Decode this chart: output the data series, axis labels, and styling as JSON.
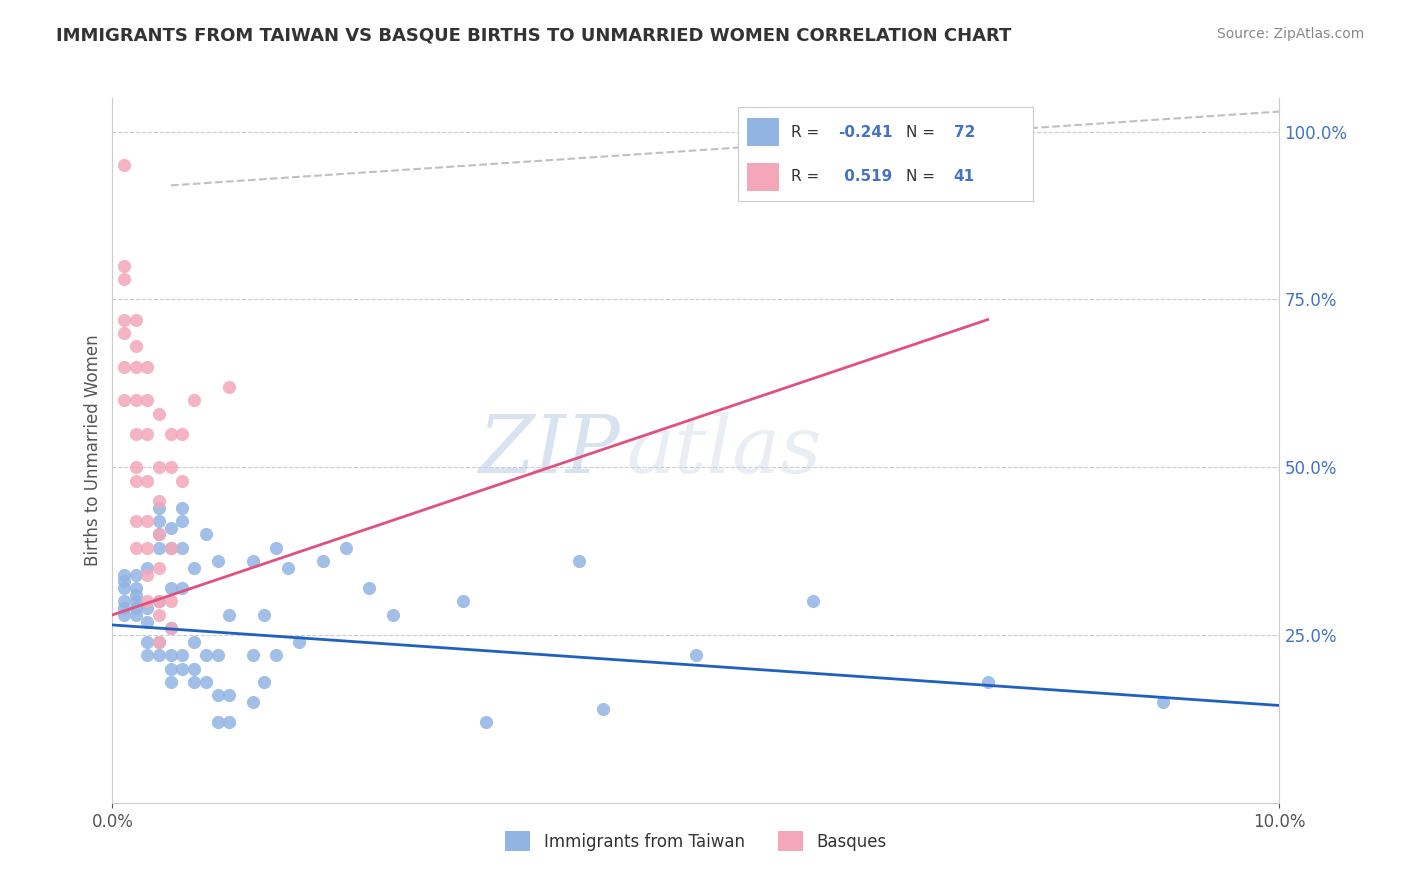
{
  "title": "IMMIGRANTS FROM TAIWAN VS BASQUE BIRTHS TO UNMARRIED WOMEN CORRELATION CHART",
  "source": "Source: ZipAtlas.com",
  "xlabel": "",
  "ylabel": "Births to Unmarried Women",
  "legend_labels": [
    "Immigrants from Taiwan",
    "Basques"
  ],
  "r_taiwan": -0.241,
  "n_taiwan": 72,
  "r_basques": 0.519,
  "n_basques": 41,
  "xlim": [
    0.0,
    0.1
  ],
  "ylim": [
    0.0,
    1.05
  ],
  "color_taiwan": "#92b4e3",
  "color_basques": "#f4a7b9",
  "line_color_taiwan": "#2060c0",
  "line_color_basques": "#e05080",
  "line_color_diagonal": "#c0c0c0",
  "background_color": "#ffffff",
  "watermark_zip": "ZIP",
  "watermark_atlas": "atlas",
  "taiwan_scatter": [
    [
      0.001,
      0.34
    ],
    [
      0.001,
      0.3
    ],
    [
      0.001,
      0.29
    ],
    [
      0.001,
      0.32
    ],
    [
      0.001,
      0.28
    ],
    [
      0.001,
      0.33
    ],
    [
      0.002,
      0.34
    ],
    [
      0.002,
      0.31
    ],
    [
      0.002,
      0.3
    ],
    [
      0.002,
      0.29
    ],
    [
      0.002,
      0.32
    ],
    [
      0.002,
      0.28
    ],
    [
      0.003,
      0.35
    ],
    [
      0.003,
      0.29
    ],
    [
      0.003,
      0.24
    ],
    [
      0.003,
      0.27
    ],
    [
      0.003,
      0.22
    ],
    [
      0.004,
      0.3
    ],
    [
      0.004,
      0.24
    ],
    [
      0.004,
      0.22
    ],
    [
      0.004,
      0.38
    ],
    [
      0.004,
      0.4
    ],
    [
      0.004,
      0.42
    ],
    [
      0.004,
      0.44
    ],
    [
      0.005,
      0.38
    ],
    [
      0.005,
      0.41
    ],
    [
      0.005,
      0.32
    ],
    [
      0.005,
      0.26
    ],
    [
      0.005,
      0.22
    ],
    [
      0.005,
      0.2
    ],
    [
      0.005,
      0.18
    ],
    [
      0.006,
      0.44
    ],
    [
      0.006,
      0.42
    ],
    [
      0.006,
      0.38
    ],
    [
      0.006,
      0.32
    ],
    [
      0.006,
      0.22
    ],
    [
      0.006,
      0.2
    ],
    [
      0.007,
      0.35
    ],
    [
      0.007,
      0.24
    ],
    [
      0.007,
      0.2
    ],
    [
      0.007,
      0.18
    ],
    [
      0.008,
      0.4
    ],
    [
      0.008,
      0.22
    ],
    [
      0.008,
      0.18
    ],
    [
      0.009,
      0.36
    ],
    [
      0.009,
      0.22
    ],
    [
      0.009,
      0.16
    ],
    [
      0.009,
      0.12
    ],
    [
      0.01,
      0.28
    ],
    [
      0.01,
      0.16
    ],
    [
      0.01,
      0.12
    ],
    [
      0.012,
      0.36
    ],
    [
      0.012,
      0.22
    ],
    [
      0.012,
      0.15
    ],
    [
      0.013,
      0.28
    ],
    [
      0.013,
      0.18
    ],
    [
      0.014,
      0.38
    ],
    [
      0.014,
      0.22
    ],
    [
      0.015,
      0.35
    ],
    [
      0.016,
      0.24
    ],
    [
      0.018,
      0.36
    ],
    [
      0.02,
      0.38
    ],
    [
      0.022,
      0.32
    ],
    [
      0.024,
      0.28
    ],
    [
      0.03,
      0.3
    ],
    [
      0.032,
      0.12
    ],
    [
      0.04,
      0.36
    ],
    [
      0.042,
      0.14
    ],
    [
      0.05,
      0.22
    ],
    [
      0.06,
      0.3
    ],
    [
      0.075,
      0.18
    ],
    [
      0.09,
      0.15
    ]
  ],
  "basques_scatter": [
    [
      0.001,
      0.95
    ],
    [
      0.001,
      0.8
    ],
    [
      0.001,
      0.78
    ],
    [
      0.001,
      0.72
    ],
    [
      0.001,
      0.7
    ],
    [
      0.001,
      0.65
    ],
    [
      0.001,
      0.6
    ],
    [
      0.002,
      0.72
    ],
    [
      0.002,
      0.68
    ],
    [
      0.002,
      0.65
    ],
    [
      0.002,
      0.6
    ],
    [
      0.002,
      0.55
    ],
    [
      0.002,
      0.5
    ],
    [
      0.002,
      0.48
    ],
    [
      0.002,
      0.42
    ],
    [
      0.002,
      0.38
    ],
    [
      0.003,
      0.65
    ],
    [
      0.003,
      0.6
    ],
    [
      0.003,
      0.55
    ],
    [
      0.003,
      0.48
    ],
    [
      0.003,
      0.42
    ],
    [
      0.003,
      0.38
    ],
    [
      0.003,
      0.34
    ],
    [
      0.003,
      0.3
    ],
    [
      0.004,
      0.58
    ],
    [
      0.004,
      0.5
    ],
    [
      0.004,
      0.45
    ],
    [
      0.004,
      0.4
    ],
    [
      0.004,
      0.35
    ],
    [
      0.004,
      0.3
    ],
    [
      0.004,
      0.28
    ],
    [
      0.004,
      0.24
    ],
    [
      0.005,
      0.55
    ],
    [
      0.005,
      0.5
    ],
    [
      0.005,
      0.38
    ],
    [
      0.005,
      0.3
    ],
    [
      0.005,
      0.26
    ],
    [
      0.006,
      0.55
    ],
    [
      0.006,
      0.48
    ],
    [
      0.007,
      0.6
    ],
    [
      0.01,
      0.62
    ]
  ]
}
